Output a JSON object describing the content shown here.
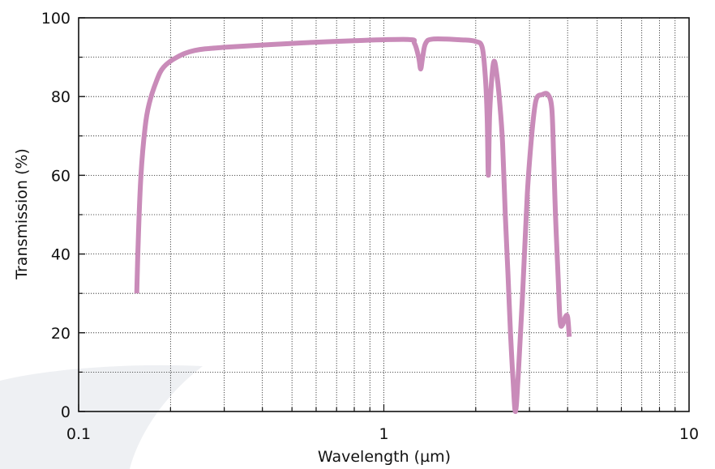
{
  "chart_data": {
    "type": "line",
    "title": "",
    "xlabel": "Wavelength (µm)",
    "ylabel": "Transmission (%)",
    "x_scale": "log",
    "xlim": [
      0.1,
      10
    ],
    "ylim": [
      0,
      100
    ],
    "x_tick_labels": [
      {
        "value": 0.1,
        "label": "0.1"
      },
      {
        "value": 1,
        "label": "1"
      },
      {
        "value": 10,
        "label": "10"
      }
    ],
    "y_tick_labels": [
      {
        "value": 0,
        "label": "0"
      },
      {
        "value": 20,
        "label": "20"
      },
      {
        "value": 40,
        "label": "40"
      },
      {
        "value": 60,
        "label": "60"
      },
      {
        "value": 80,
        "label": "80"
      },
      {
        "value": 100,
        "label": "100"
      }
    ],
    "y_minor_step": 10,
    "grid": true,
    "grid_style": "dotted",
    "line_color": "#c98bb9",
    "series": [
      {
        "points": [
          [
            0.155,
            30
          ],
          [
            0.157,
            45
          ],
          [
            0.16,
            60
          ],
          [
            0.165,
            72
          ],
          [
            0.17,
            78
          ],
          [
            0.18,
            84
          ],
          [
            0.19,
            87.5
          ],
          [
            0.21,
            90
          ],
          [
            0.24,
            91.7
          ],
          [
            0.3,
            92.5
          ],
          [
            0.5,
            93.5
          ],
          [
            0.8,
            94.2
          ],
          [
            1.2,
            94.5
          ],
          [
            1.26,
            93.5
          ],
          [
            1.3,
            90
          ],
          [
            1.32,
            87
          ],
          [
            1.34,
            90
          ],
          [
            1.37,
            93.5
          ],
          [
            1.45,
            94.6
          ],
          [
            1.8,
            94.4
          ],
          [
            2.0,
            94
          ],
          [
            2.1,
            92.5
          ],
          [
            2.15,
            85
          ],
          [
            2.18,
            75
          ],
          [
            2.2,
            60
          ],
          [
            2.22,
            75
          ],
          [
            2.26,
            85
          ],
          [
            2.3,
            89
          ],
          [
            2.35,
            85
          ],
          [
            2.4,
            78
          ],
          [
            2.45,
            68
          ],
          [
            2.5,
            50
          ],
          [
            2.55,
            35
          ],
          [
            2.6,
            20
          ],
          [
            2.65,
            8
          ],
          [
            2.7,
            0
          ],
          [
            2.76,
            10
          ],
          [
            2.85,
            30
          ],
          [
            2.95,
            55
          ],
          [
            3.05,
            70
          ],
          [
            3.15,
            79
          ],
          [
            3.3,
            80.5
          ],
          [
            3.45,
            80.5
          ],
          [
            3.55,
            77
          ],
          [
            3.6,
            65
          ],
          [
            3.65,
            50
          ],
          [
            3.72,
            35
          ],
          [
            3.78,
            23
          ],
          [
            3.85,
            22
          ],
          [
            3.93,
            24
          ],
          [
            4.0,
            24
          ],
          [
            4.05,
            19
          ]
        ]
      }
    ]
  }
}
